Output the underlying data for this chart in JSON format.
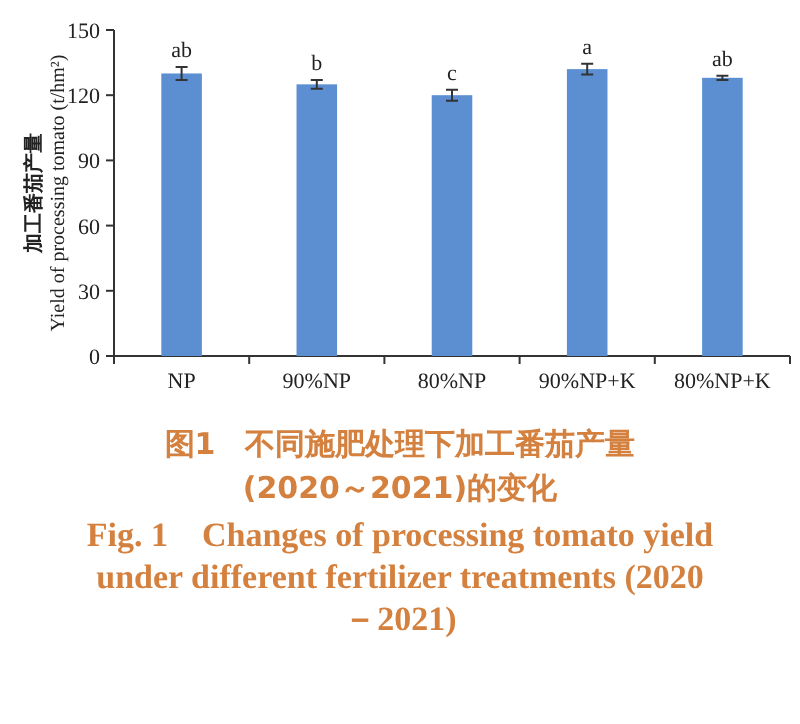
{
  "chart_data": {
    "type": "bar",
    "title": "图1　不同施肥处理下加工番茄产量(2020～2021)的变化",
    "subtitle": "Fig. 1　Changes of processing tomato yield under different fertilizer treatments (2020－2021)",
    "ylabel": "加工番茄产量\nYield of processing tomato (t/hm²)",
    "categories": [
      "NP",
      "90%NP",
      "80%NP",
      "90%NP+K",
      "80%NP+K"
    ],
    "values": [
      130,
      125,
      120,
      132,
      128
    ],
    "errors": [
      3,
      2,
      2.5,
      2.5,
      1
    ],
    "color": "#5b8fd2",
    "ylim": [
      0,
      150
    ],
    "yticks": [
      0,
      30,
      60,
      90,
      120,
      150
    ],
    "grid": false,
    "annotations": [
      {
        "text": "ab",
        "x": "NP",
        "y": 133
      },
      {
        "text": "b",
        "x": "90%NP",
        "y": 127
      },
      {
        "text": "c",
        "x": "80%NP",
        "y": 122.5
      },
      {
        "text": "a",
        "x": "90%NP+K",
        "y": 134.5
      },
      {
        "text": "ab",
        "x": "80%NP+K",
        "y": 129
      }
    ]
  }
}
